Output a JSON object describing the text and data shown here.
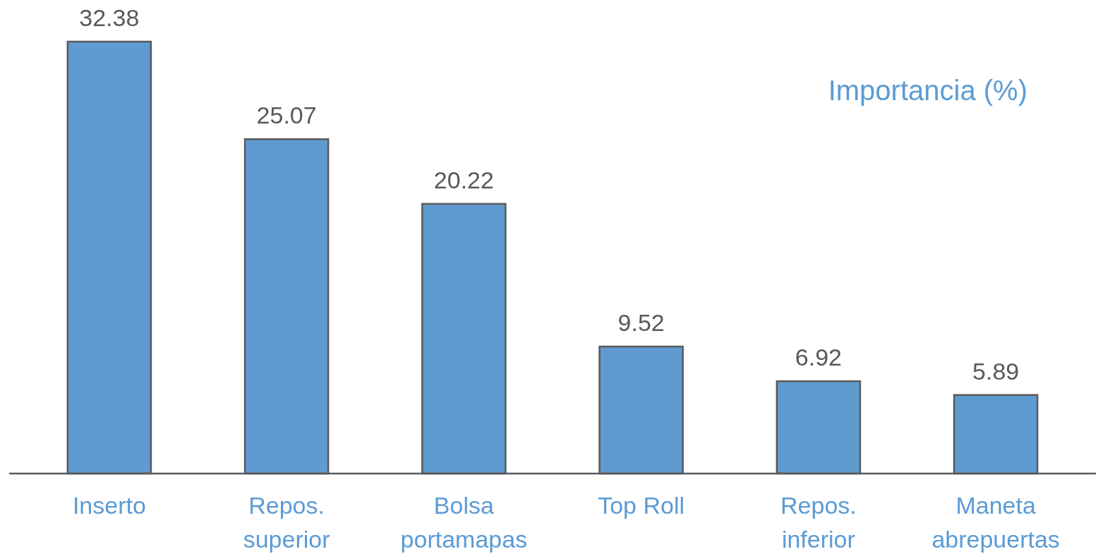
{
  "chart_data": {
    "type": "bar",
    "title": "Importancia (%)",
    "categories": [
      "Inserto",
      "Repos.\nsuperior",
      "Bolsa\nportamapas",
      "Top Roll",
      "Repos.\ninferior",
      "Maneta\nabrepuertas"
    ],
    "values": [
      32.38,
      25.07,
      20.22,
      9.52,
      6.92,
      5.89
    ],
    "color": "#5f9bd0",
    "data_labels": true
  }
}
